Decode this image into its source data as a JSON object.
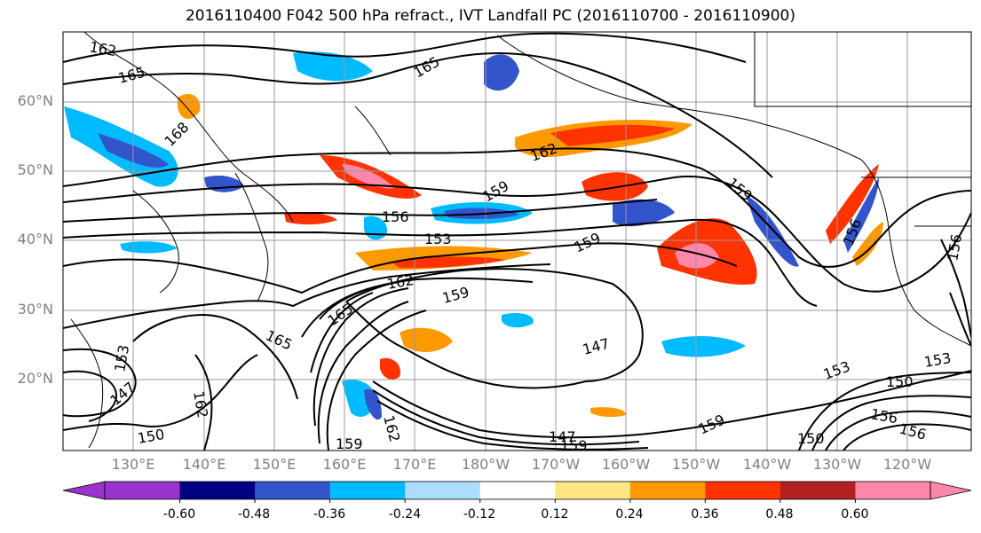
{
  "title": "2016110400 F042 500 hPa refract., IVT Landfall PC (2016110700 - 2016110900)",
  "lat_labels": [
    "60°N",
    "50°N",
    "40°N",
    "30°N",
    "20°N"
  ],
  "lon_labels": [
    "130°E",
    "140°E",
    "150°E",
    "160°E",
    "170°E",
    "180°W",
    "170°W",
    "160°W",
    "150°W",
    "140°W",
    "130°W",
    "120°W"
  ],
  "colorbar": {
    "colors": [
      "#9933cc",
      "#000080",
      "#3355cc",
      "#00bbff",
      "#aaddff",
      "#ffffff",
      "#ffe680",
      "#ff9900",
      "#ff3300",
      "#b22222",
      "#ff88aa"
    ],
    "tick_labels": [
      "-0.60",
      "-0.48",
      "-0.36",
      "-0.24",
      "-0.12",
      "0.12",
      "0.24",
      "0.36",
      "0.48",
      "0.60"
    ]
  },
  "contour_labels": [
    "162",
    "165",
    "165",
    "168",
    "162",
    "159",
    "156",
    "153",
    "159",
    "159",
    "156",
    "162",
    "159",
    "165",
    "165",
    "153",
    "147",
    "147",
    "162",
    "147",
    "150",
    "159",
    "153",
    "150",
    "156",
    "156",
    "153",
    "150",
    "162",
    "159",
    "159",
    "156"
  ]
}
